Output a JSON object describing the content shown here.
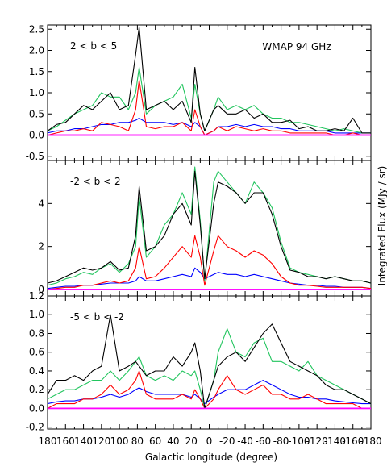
{
  "chart_data": {
    "type": "line",
    "xlabel": "Galactic longitude (degree)",
    "ylabel": "Integrated Flux (MJy / sr)",
    "annotation": "WMAP 94 GHz",
    "x_tick_labels": [
      "180",
      "160",
      "140",
      "120",
      "100",
      "80",
      "60",
      "40",
      "20",
      "0",
      "-20",
      "-40",
      "-60",
      "-80",
      "-100",
      "-120",
      "-140",
      "-160",
      "-180"
    ],
    "series_colors": [
      "#000000",
      "#22c55e",
      "#ff0000",
      "#0000ff",
      "#ff00ff"
    ],
    "panels": [
      {
        "label": "2 < b < 5",
        "ylim": [
          -0.6,
          2.6
        ],
        "yticks": [
          "2.5",
          "2.0",
          "1.5",
          "1.0",
          "0.5",
          "0.0",
          "-0.5"
        ],
        "ytick_values": [
          2.5,
          2.0,
          1.5,
          1.0,
          0.5,
          0.0,
          -0.5
        ],
        "x": [
          180,
          170,
          160,
          150,
          140,
          130,
          120,
          110,
          100,
          90,
          82,
          78,
          70,
          60,
          50,
          40,
          30,
          20,
          16,
          10,
          5,
          -5,
          -10,
          -20,
          -30,
          -40,
          -50,
          -60,
          -70,
          -80,
          -90,
          -100,
          -110,
          -120,
          -130,
          -140,
          -150,
          -160,
          -170,
          -180
        ],
        "series": [
          {
            "values": [
              0.1,
              0.25,
              0.3,
              0.5,
              0.7,
              0.6,
              0.8,
              1.0,
              0.6,
              0.7,
              1.9,
              2.55,
              0.6,
              0.7,
              0.8,
              0.6,
              0.8,
              0.3,
              1.6,
              0.5,
              0.1,
              0.6,
              0.7,
              0.5,
              0.5,
              0.6,
              0.4,
              0.5,
              0.3,
              0.3,
              0.35,
              0.15,
              0.2,
              0.1,
              0.1,
              0.15,
              0.1,
              0.4,
              0.05,
              0.05
            ]
          },
          {
            "values": [
              0.1,
              0.2,
              0.35,
              0.5,
              0.6,
              0.7,
              1.0,
              0.9,
              0.9,
              0.6,
              1.0,
              1.6,
              0.5,
              0.7,
              0.8,
              0.9,
              1.2,
              0.4,
              1.2,
              0.5,
              0.1,
              0.6,
              0.9,
              0.6,
              0.7,
              0.6,
              0.7,
              0.5,
              0.4,
              0.4,
              0.3,
              0.3,
              0.25,
              0.2,
              0.15,
              0.1,
              0.15,
              0.1,
              0.05,
              0.05
            ]
          },
          {
            "values": [
              0.0,
              0.05,
              0.1,
              0.1,
              0.15,
              0.1,
              0.3,
              0.25,
              0.2,
              0.1,
              0.6,
              1.3,
              0.2,
              0.15,
              0.2,
              0.2,
              0.3,
              0.1,
              0.6,
              0.2,
              0.0,
              0.1,
              0.2,
              0.1,
              0.2,
              0.15,
              0.1,
              0.15,
              0.1,
              0.1,
              0.05,
              0.05,
              0.05,
              0.05,
              0.05,
              0.0,
              0.0,
              0.05,
              0.0,
              0.0
            ]
          },
          {
            "values": [
              0.05,
              0.1,
              0.1,
              0.15,
              0.15,
              0.2,
              0.25,
              0.25,
              0.3,
              0.3,
              0.35,
              0.4,
              0.3,
              0.3,
              0.3,
              0.25,
              0.3,
              0.2,
              0.3,
              0.2,
              0.0,
              0.1,
              0.2,
              0.2,
              0.25,
              0.2,
              0.25,
              0.2,
              0.2,
              0.15,
              0.15,
              0.1,
              0.1,
              0.1,
              0.1,
              0.05,
              0.05,
              0.05,
              0.05,
              0.05
            ]
          },
          {
            "values": [
              0,
              0,
              0,
              0,
              0,
              0,
              0,
              0,
              0,
              0,
              0,
              0,
              0,
              0,
              0,
              0,
              0,
              0,
              0,
              0,
              0,
              0,
              0,
              0,
              0,
              0,
              0,
              0,
              0,
              0,
              0,
              0,
              0,
              0,
              0,
              0,
              0,
              0,
              0,
              0
            ]
          }
        ]
      },
      {
        "label": "-2 < b < 2",
        "ylim": [
          -0.3,
          6.0
        ],
        "yticks": [
          "4",
          "2",
          "0"
        ],
        "ytick_values": [
          4,
          2,
          0
        ],
        "x": [
          180,
          170,
          160,
          150,
          140,
          130,
          120,
          110,
          100,
          90,
          82,
          78,
          70,
          60,
          50,
          40,
          30,
          20,
          16,
          10,
          5,
          -5,
          -10,
          -20,
          -30,
          -40,
          -50,
          -60,
          -70,
          -80,
          -90,
          -100,
          -110,
          -120,
          -130,
          -140,
          -150,
          -160,
          -170,
          -180
        ],
        "series": [
          {
            "values": [
              0.3,
              0.4,
              0.6,
              0.8,
              1.0,
              0.9,
              1.0,
              1.3,
              0.9,
              1.0,
              2.5,
              4.8,
              1.8,
              2.0,
              2.5,
              3.5,
              4.0,
              3.0,
              5.5,
              3.0,
              0.5,
              4.0,
              5.0,
              4.8,
              4.5,
              4.0,
              4.5,
              4.5,
              3.5,
              2.0,
              0.9,
              0.8,
              0.6,
              0.6,
              0.5,
              0.6,
              0.5,
              0.4,
              0.4,
              0.3
            ]
          },
          {
            "values": [
              0.2,
              0.3,
              0.5,
              0.6,
              0.8,
              0.7,
              1.0,
              1.2,
              0.8,
              1.2,
              2.0,
              4.3,
              1.5,
              2.0,
              3.0,
              3.5,
              4.5,
              3.5,
              5.7,
              3.2,
              0.4,
              5.0,
              5.5,
              5.0,
              4.5,
              4.0,
              5.0,
              4.5,
              3.8,
              2.2,
              1.0,
              0.8,
              0.7,
              0.6,
              0.5,
              0.6,
              0.5,
              0.4,
              0.4,
              0.3
            ]
          },
          {
            "values": [
              0.0,
              0.05,
              0.1,
              0.1,
              0.2,
              0.2,
              0.3,
              0.4,
              0.3,
              0.4,
              1.0,
              2.0,
              0.5,
              0.6,
              1.0,
              1.5,
              2.0,
              1.5,
              2.5,
              1.5,
              0.2,
              1.8,
              2.5,
              2.0,
              1.8,
              1.5,
              1.8,
              1.6,
              1.2,
              0.6,
              0.3,
              0.2,
              0.2,
              0.15,
              0.1,
              0.1,
              0.1,
              0.1,
              0.1,
              0.05
            ]
          },
          {
            "values": [
              0.05,
              0.1,
              0.15,
              0.15,
              0.2,
              0.2,
              0.25,
              0.3,
              0.3,
              0.3,
              0.4,
              0.6,
              0.4,
              0.4,
              0.5,
              0.6,
              0.7,
              0.6,
              1.0,
              0.8,
              0.5,
              0.7,
              0.8,
              0.7,
              0.7,
              0.6,
              0.7,
              0.6,
              0.5,
              0.4,
              0.3,
              0.25,
              0.2,
              0.2,
              0.15,
              0.15,
              0.1,
              0.1,
              0.1,
              0.05
            ]
          },
          {
            "values": [
              0,
              0,
              0,
              0,
              0,
              0,
              0,
              0,
              0,
              0,
              0,
              0,
              0,
              0,
              0,
              0,
              0,
              0,
              0,
              0,
              0,
              0,
              0,
              0,
              0,
              0,
              0,
              0,
              0,
              0,
              0,
              0,
              0,
              0,
              0,
              0,
              0,
              0,
              0,
              0
            ]
          }
        ]
      },
      {
        "label": "-5 < b < -2",
        "ylim": [
          -0.22,
          1.2
        ],
        "yticks": [
          "1.2",
          "1.0",
          "0.8",
          "0.6",
          "0.4",
          "0.2",
          "0.0",
          "-0.2"
        ],
        "ytick_values": [
          1.2,
          1.0,
          0.8,
          0.6,
          0.4,
          0.2,
          0.0,
          -0.2
        ],
        "x": [
          180,
          170,
          160,
          150,
          140,
          130,
          120,
          110,
          100,
          90,
          82,
          78,
          70,
          60,
          50,
          40,
          30,
          20,
          16,
          10,
          5,
          -5,
          -10,
          -20,
          -30,
          -40,
          -50,
          -60,
          -70,
          -80,
          -90,
          -100,
          -110,
          -120,
          -130,
          -140,
          -150,
          -160,
          -170,
          -180
        ],
        "series": [
          {
            "values": [
              0.15,
              0.3,
              0.3,
              0.35,
              0.3,
              0.4,
              0.45,
              1.0,
              0.4,
              0.45,
              0.5,
              0.45,
              0.35,
              0.4,
              0.4,
              0.55,
              0.45,
              0.6,
              0.7,
              0.4,
              0.0,
              0.3,
              0.45,
              0.55,
              0.6,
              0.5,
              0.65,
              0.8,
              0.9,
              0.7,
              0.5,
              0.45,
              0.4,
              0.35,
              0.25,
              0.2,
              0.2,
              0.15,
              0.1,
              0.05
            ]
          },
          {
            "values": [
              0.1,
              0.15,
              0.2,
              0.2,
              0.25,
              0.3,
              0.3,
              0.4,
              0.3,
              0.4,
              0.5,
              0.55,
              0.35,
              0.3,
              0.35,
              0.3,
              0.4,
              0.35,
              0.4,
              0.2,
              0.0,
              0.3,
              0.6,
              0.85,
              0.6,
              0.55,
              0.7,
              0.75,
              0.5,
              0.5,
              0.45,
              0.4,
              0.5,
              0.35,
              0.3,
              0.25,
              0.2,
              0.15,
              0.1,
              0.05
            ]
          },
          {
            "values": [
              0.0,
              0.05,
              0.05,
              0.05,
              0.1,
              0.1,
              0.15,
              0.25,
              0.15,
              0.2,
              0.3,
              0.4,
              0.15,
              0.1,
              0.1,
              0.1,
              0.15,
              0.1,
              0.2,
              0.1,
              0.0,
              0.1,
              0.2,
              0.35,
              0.2,
              0.15,
              0.2,
              0.25,
              0.15,
              0.15,
              0.1,
              0.1,
              0.15,
              0.1,
              0.05,
              0.05,
              0.05,
              0.05,
              0.0,
              0.0
            ]
          },
          {
            "values": [
              0.05,
              0.07,
              0.08,
              0.08,
              0.1,
              0.1,
              0.12,
              0.15,
              0.12,
              0.15,
              0.2,
              0.22,
              0.18,
              0.15,
              0.15,
              0.15,
              0.15,
              0.12,
              0.15,
              0.1,
              0.05,
              0.12,
              0.15,
              0.2,
              0.2,
              0.2,
              0.25,
              0.3,
              0.25,
              0.2,
              0.15,
              0.12,
              0.12,
              0.1,
              0.1,
              0.08,
              0.07,
              0.06,
              0.05,
              0.05
            ]
          },
          {
            "values": [
              0,
              0,
              0,
              0,
              0,
              0,
              0,
              0,
              0,
              0,
              0,
              0,
              0,
              0,
              0,
              0,
              0,
              0,
              0,
              0,
              0,
              0,
              0,
              0,
              0,
              0,
              0,
              0,
              0,
              0,
              0,
              0,
              0,
              0,
              0,
              0,
              0,
              0,
              0,
              0
            ]
          }
        ]
      }
    ]
  }
}
